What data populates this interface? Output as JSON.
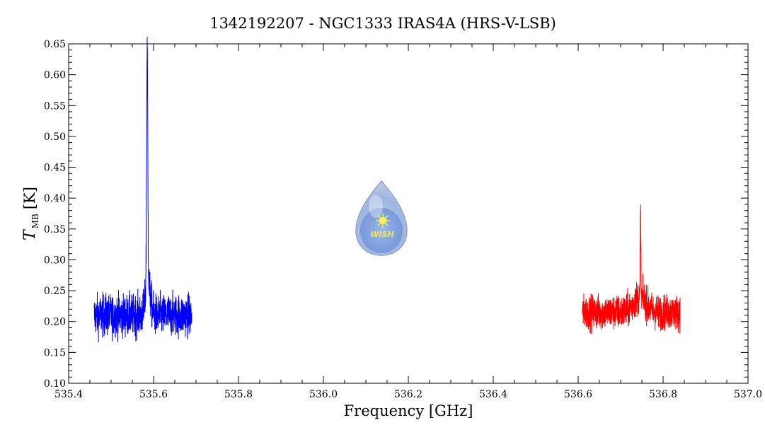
{
  "chart_data": {
    "type": "line",
    "title": "1342192207 - NGC1333 IRAS4A (HRS-V-LSB)",
    "xlabel": "Frequency [GHz]",
    "ylabel": {
      "main": "T",
      "subscript": "MB",
      "unit": "[K]"
    },
    "xlim": [
      535.4,
      537.0
    ],
    "ylim": [
      0.1,
      0.65
    ],
    "x_ticks": [
      "535.4",
      "535.6",
      "535.8",
      "536.0",
      "536.2",
      "536.4",
      "536.6",
      "536.8",
      "537.0"
    ],
    "y_ticks": [
      "0.10",
      "0.15",
      "0.20",
      "0.25",
      "0.30",
      "0.35",
      "0.40",
      "0.45",
      "0.50",
      "0.55",
      "0.60",
      "0.65"
    ],
    "grid": false,
    "series": [
      {
        "color": "#0000ff",
        "x_range": [
          535.46,
          535.69
        ],
        "baseline": 0.21,
        "noise_amplitude": 0.03,
        "lines": [
          {
            "center": 535.585,
            "peak": 0.6,
            "width": 0.002
          },
          {
            "center": 535.587,
            "peak": 0.26,
            "width": 0.008
          }
        ]
      },
      {
        "color": "#ff0000",
        "x_range": [
          536.61,
          536.84
        ],
        "baseline": 0.215,
        "noise_amplitude": 0.025,
        "lines": [
          {
            "center": 536.747,
            "peak": 0.355,
            "width": 0.001
          },
          {
            "center": 536.745,
            "peak": 0.24,
            "width": 0.02
          }
        ]
      }
    ]
  },
  "logo": {
    "text": "WISH"
  }
}
